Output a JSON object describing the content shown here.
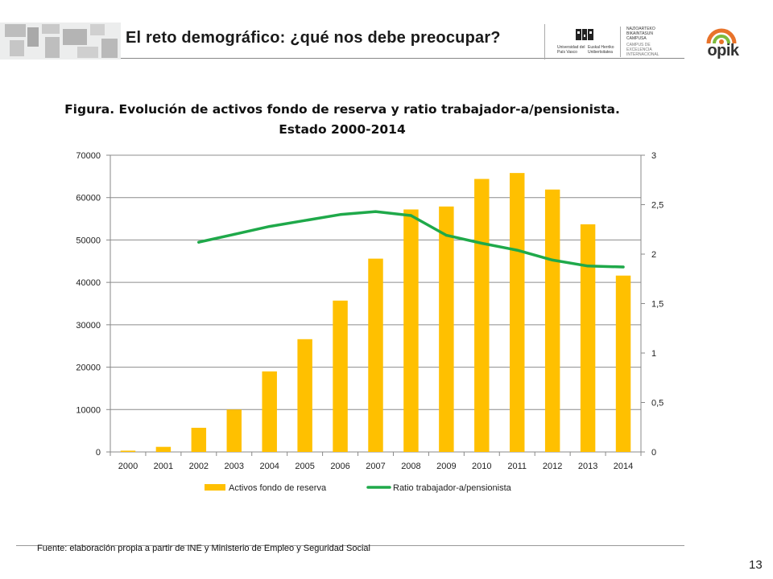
{
  "header": {
    "title": "El reto demográfico: ¿qué nos debe preocupar?",
    "logo_upv_es": "Universidad del País Vasco",
    "logo_upv_eu": "Euskal Herriko Unibertsitatea",
    "logo_campus": [
      "NAZIOARTEKO",
      "BIKAINTASUN",
      "CAMPUSA",
      "CAMPUS DE",
      "EXCELENCIA",
      "INTERNACIONAL"
    ],
    "logo_opik": "opik",
    "colors": {
      "opik_orange": "#e8732a",
      "opik_green": "#7dbb3c"
    }
  },
  "chart_data": {
    "type": "bar",
    "title": [
      "Figura. Evolución de activos fondo de reserva y ratio trabajador-a/pensionista.",
      "Estado 2000-2014"
    ],
    "categories": [
      "2000",
      "2001",
      "2002",
      "2003",
      "2004",
      "2005",
      "2006",
      "2007",
      "2008",
      "2009",
      "2010",
      "2011",
      "2012",
      "2013",
      "2014"
    ],
    "series": [
      {
        "name": "Activos fondo de reserva",
        "type": "bar",
        "axis": "left",
        "color": "#ffc000",
        "values": [
          300,
          1200,
          5700,
          10000,
          19000,
          26600,
          35700,
          45600,
          57200,
          57900,
          64400,
          65800,
          61900,
          53700,
          41600
        ]
      },
      {
        "name": "Ratio trabajador-a/pensionista",
        "type": "line",
        "axis": "right",
        "color": "#1fa94a",
        "values": [
          null,
          null,
          2.12,
          2.2,
          2.28,
          2.34,
          2.4,
          2.43,
          2.39,
          2.19,
          2.11,
          2.04,
          1.94,
          1.88,
          1.87
        ]
      }
    ],
    "y_left": {
      "ylim": [
        0,
        70000
      ],
      "ticks": [
        "0",
        "10000",
        "20000",
        "30000",
        "40000",
        "50000",
        "60000",
        "70000"
      ]
    },
    "y_right": {
      "ylim": [
        0,
        3
      ],
      "ticks": [
        "0",
        "0,5",
        "1",
        "1,5",
        "2",
        "2,5",
        "3"
      ]
    },
    "grid": true,
    "legend_position": "bottom"
  },
  "footer": {
    "source": "Fuente: elaboración propia a partir de INE y Ministerio de Empleo y Seguridad Social",
    "page_number": "13"
  }
}
